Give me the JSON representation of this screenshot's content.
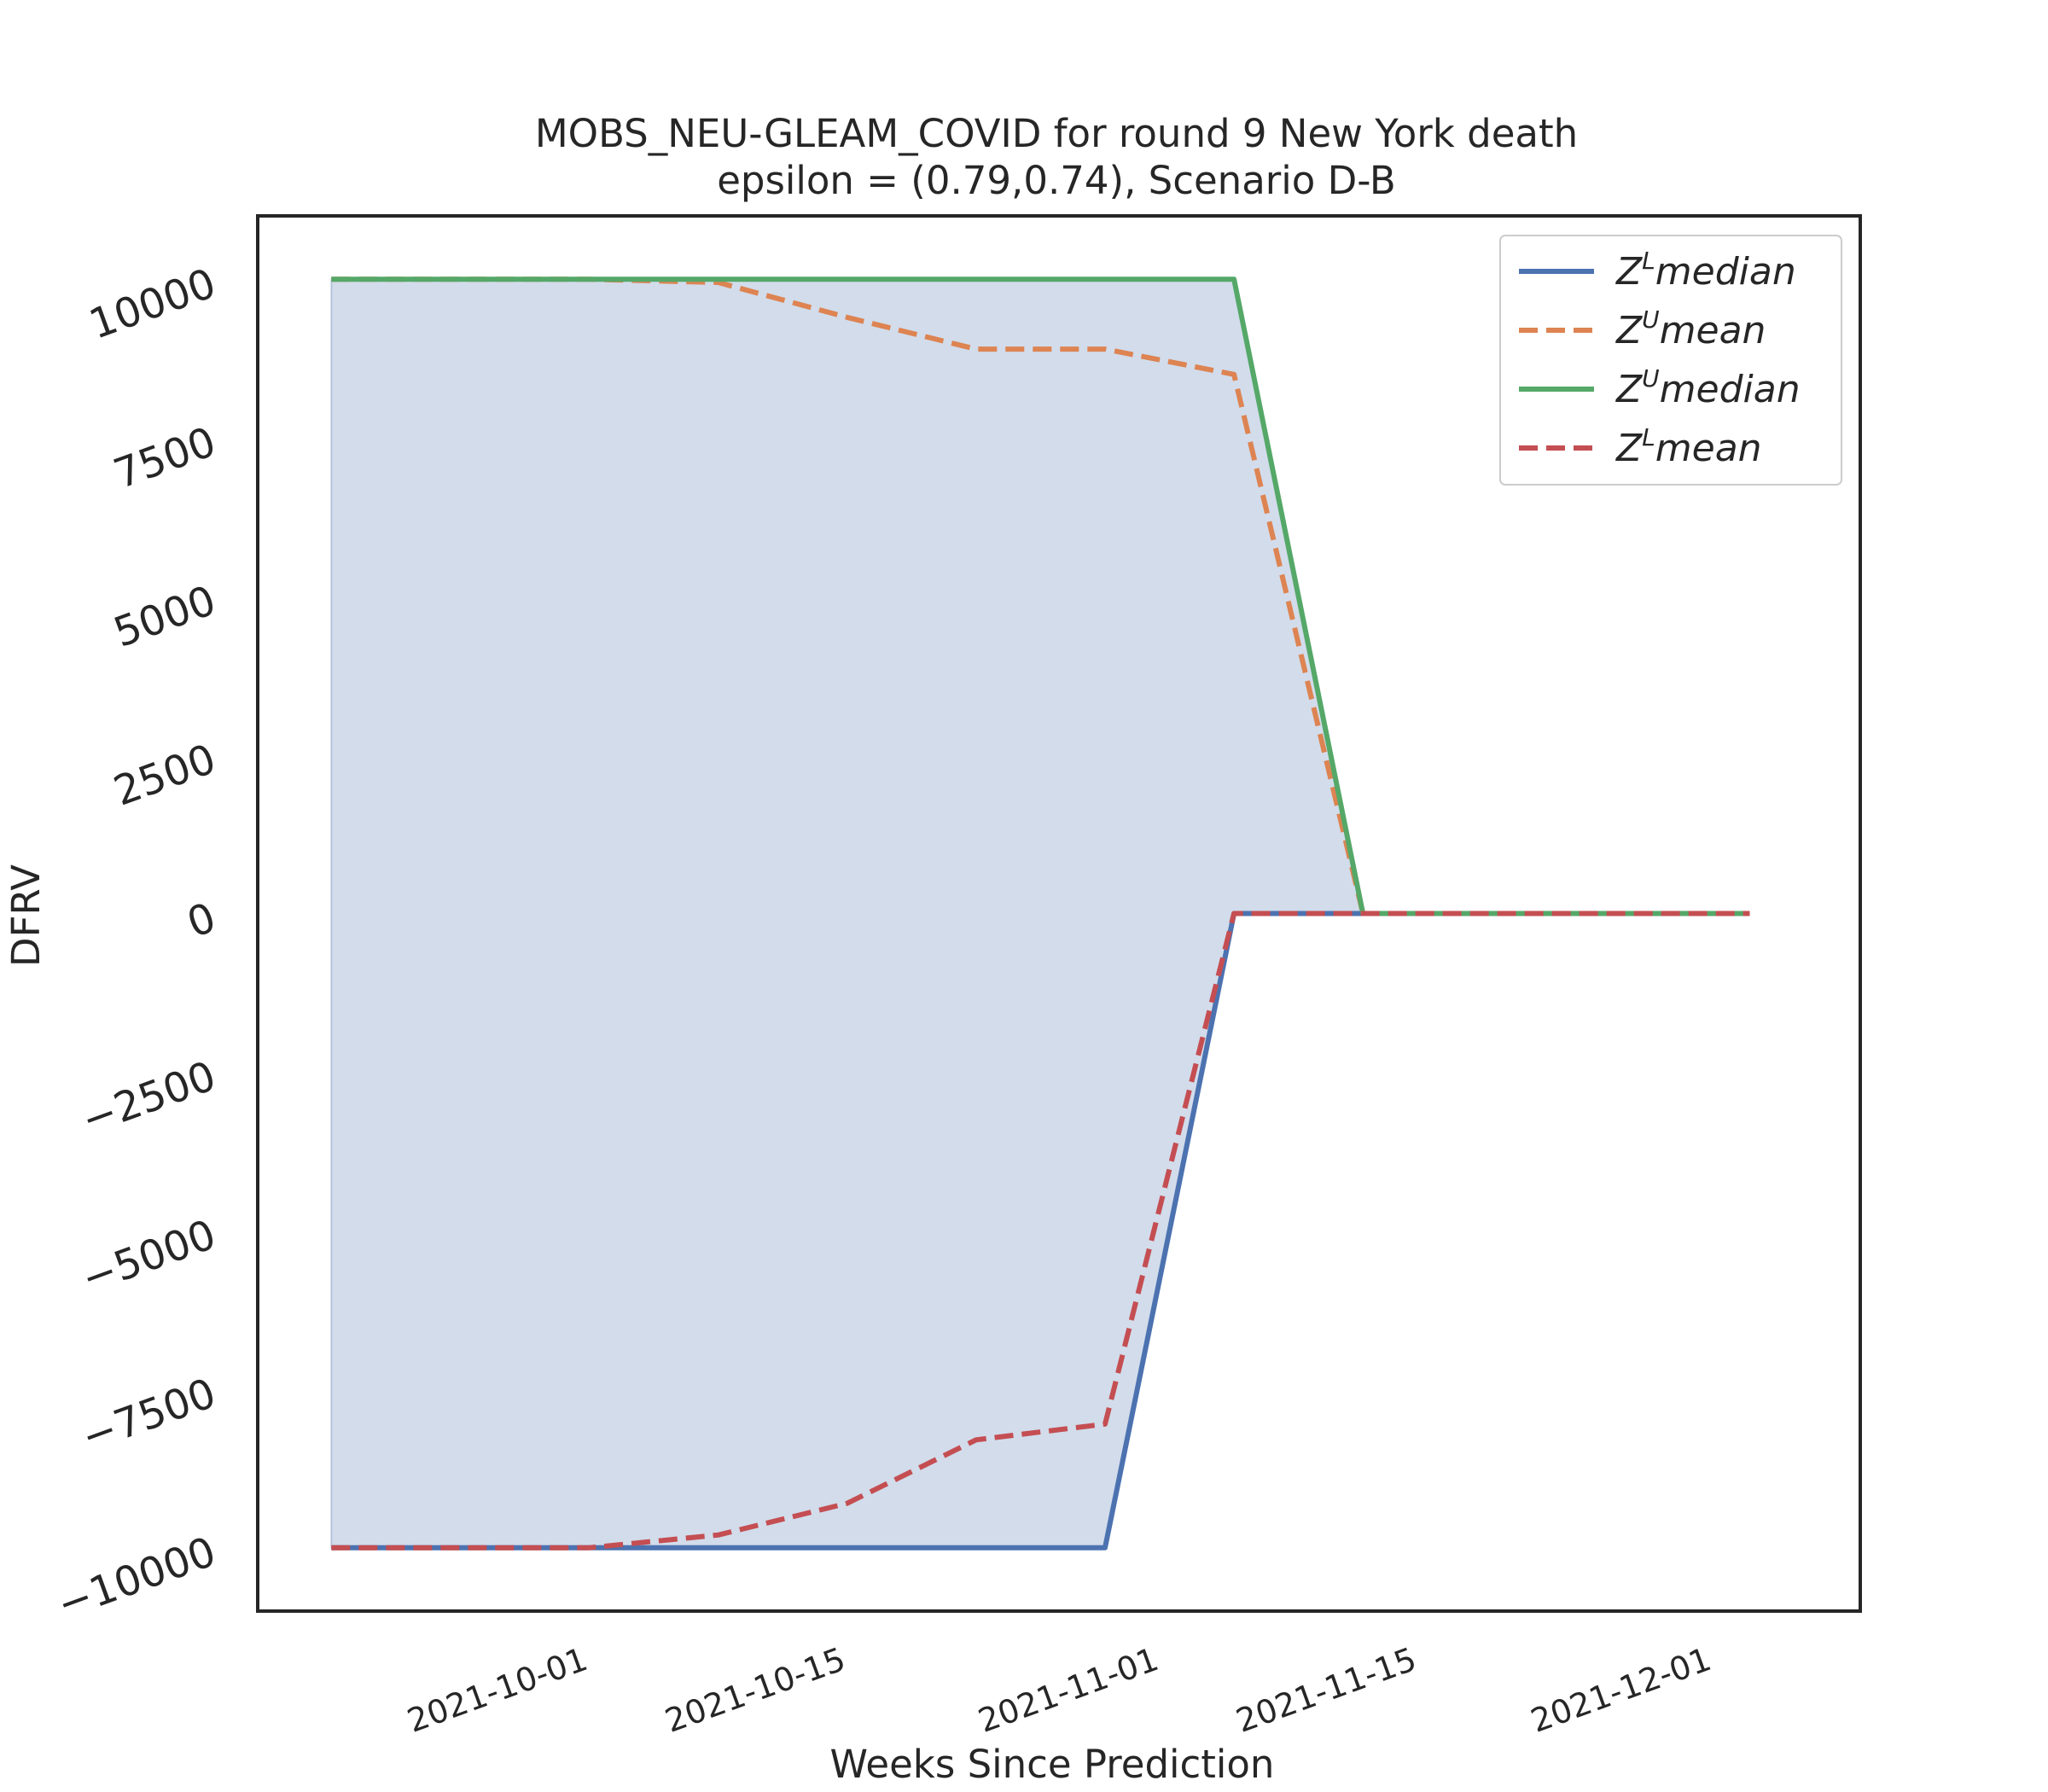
{
  "chart_data": {
    "type": "line",
    "title": "MOBS_NEU-GLEAM_COVID for round 9 New York  death",
    "subtitle": "epsilon = (0.79,0.74), Scenario D-B",
    "xlabel": "Weeks Since Prediction",
    "ylabel": "DFRV",
    "x": [
      "2021-09-18",
      "2021-09-25",
      "2021-10-02",
      "2021-10-09",
      "2021-10-16",
      "2021-10-23",
      "2021-10-30",
      "2021-11-06",
      "2021-11-13",
      "2021-11-20",
      "2021-11-27",
      "2021-12-04"
    ],
    "xlim": [
      "2021-09-14",
      "2021-12-10"
    ],
    "ylim": [
      -11000,
      11000
    ],
    "xticks": [
      "2021-10-01",
      "2021-10-15",
      "2021-11-01",
      "2021-11-15",
      "2021-12-01"
    ],
    "yticks": [
      -10000,
      -7500,
      -5000,
      -2500,
      0,
      2500,
      5000,
      7500,
      10000
    ],
    "ytick_labels": [
      "−10000",
      "−7500",
      "−5000",
      "−2500",
      "0",
      "2500",
      "5000",
      "7500",
      "10000"
    ],
    "grid": false,
    "legend_position": "top-right",
    "series": [
      {
        "name_base": "Z",
        "name_sup": "L",
        "name_rest": "median",
        "style": "solid",
        "color": "#4c72b0",
        "values": [
          -10000,
          -10000,
          -10000,
          -10000,
          -10000,
          -10000,
          -10000,
          0,
          0,
          0,
          0,
          0
        ]
      },
      {
        "name_base": "Z",
        "name_sup": "U",
        "name_rest": "mean",
        "style": "dashed",
        "color": "#dd8452",
        "values": [
          10000,
          10000,
          10000,
          9950,
          9400,
          8900,
          8900,
          8500,
          0,
          0,
          0,
          0
        ]
      },
      {
        "name_base": "Z",
        "name_sup": "U",
        "name_rest": "median",
        "style": "solid",
        "color": "#55a868",
        "values": [
          10000,
          10000,
          10000,
          10000,
          10000,
          10000,
          10000,
          10000,
          0,
          0,
          0,
          0
        ]
      },
      {
        "name_base": "Z",
        "name_sup": "L",
        "name_rest": "mean",
        "style": "dashed",
        "color": "#c44e52",
        "values": [
          -10000,
          -10000,
          -10000,
          -9800,
          -9300,
          -8300,
          -8050,
          0,
          0,
          0,
          0,
          0
        ]
      }
    ],
    "fill_between": {
      "lower": "Z^L median",
      "upper": "Z^U median",
      "color": "#4c72b0",
      "alpha": 0.25
    }
  }
}
